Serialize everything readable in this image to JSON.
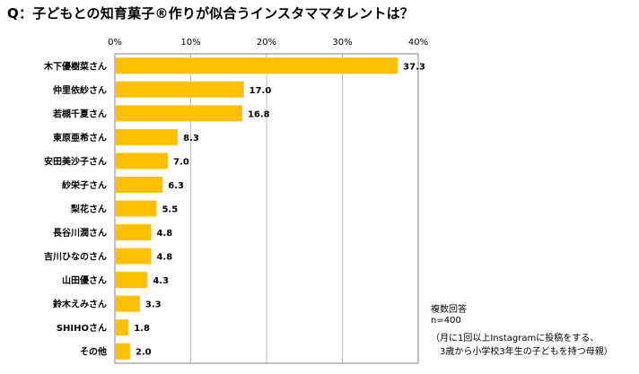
{
  "chart_data": {
    "type": "bar",
    "orientation": "horizontal",
    "title": "Q：子どもとの知育菓子®作りが似合うインスタママタレントは？",
    "categories": [
      "木下優樹菜さん",
      "仲里依紗さん",
      "若槻千夏さん",
      "東原亜希さん",
      "安田美沙子さん",
      "紗栄子さん",
      "梨花さん",
      "長谷川潤さん",
      "吉川ひなのさん",
      "山田優さん",
      "鈴木えみさん",
      "SHIHOさん",
      "その他"
    ],
    "values": [
      37.3,
      17.0,
      16.8,
      8.3,
      7.0,
      6.3,
      5.5,
      4.8,
      4.8,
      4.3,
      3.3,
      1.8,
      2.0
    ],
    "value_labels": [
      "37.3",
      "17.0",
      "16.8",
      "8.3",
      "7.0",
      "6.3",
      "5.5",
      "4.8",
      "4.8",
      "4.3",
      "3.3",
      "1.8",
      "2.0"
    ],
    "xlim": [
      0,
      40
    ],
    "ticks": [
      0,
      10,
      20,
      30,
      40
    ],
    "tick_labels": [
      "0%",
      "10%",
      "20%",
      "30%",
      "40%"
    ],
    "bar_color": "#FFC000",
    "grid": true
  },
  "notes": {
    "line1": "複数回答",
    "line2": "n=400",
    "line3": "（月に1回以上Instagramに投稿をする、",
    "line4": "3歳から小学校3年生の子どもを持つ母親）"
  }
}
